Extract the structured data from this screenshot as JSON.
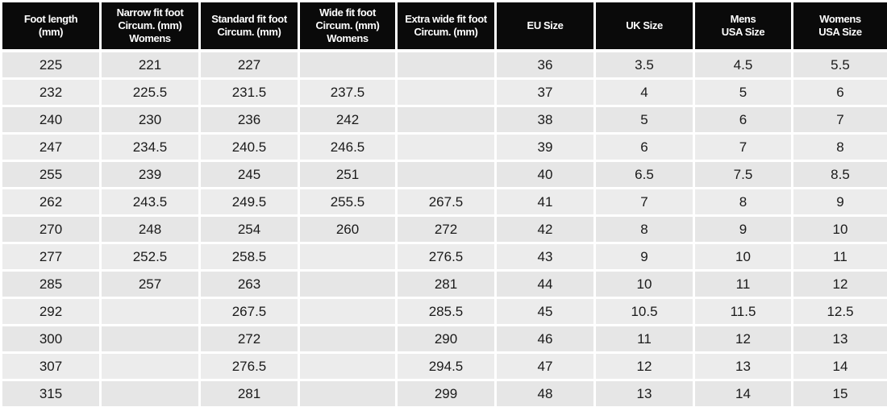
{
  "table": {
    "header": [
      "Foot length\n(mm)",
      "Narrow fit foot\nCircum. (mm)\nWomens",
      "Standard fit foot\nCircum. (mm)",
      "Wide fit foot\nCircum. (mm)\nWomens",
      "Extra wide fit foot\nCircum. (mm)",
      "EU Size",
      "UK Size",
      "Mens\nUSA Size",
      "Womens\nUSA Size"
    ],
    "rows": [
      [
        "225",
        "221",
        "227",
        null,
        null,
        "36",
        "3.5",
        "4.5",
        "5.5"
      ],
      [
        "232",
        "225.5",
        "231.5",
        "237.5",
        null,
        "37",
        "4",
        "5",
        "6"
      ],
      [
        "240",
        "230",
        "236",
        "242",
        null,
        "38",
        "5",
        "6",
        "7"
      ],
      [
        "247",
        "234.5",
        "240.5",
        "246.5",
        null,
        "39",
        "6",
        "7",
        "8"
      ],
      [
        "255",
        "239",
        "245",
        "251",
        null,
        "40",
        "6.5",
        "7.5",
        "8.5"
      ],
      [
        "262",
        "243.5",
        "249.5",
        "255.5",
        "267.5",
        "41",
        "7",
        "8",
        "9"
      ],
      [
        "270",
        "248",
        "254",
        "260",
        "272",
        "42",
        "8",
        "9",
        "10"
      ],
      [
        "277",
        "252.5",
        "258.5",
        null,
        "276.5",
        "43",
        "9",
        "10",
        "11"
      ],
      [
        "285",
        "257",
        "263",
        null,
        "281",
        "44",
        "10",
        "11",
        "12"
      ],
      [
        "292",
        null,
        "267.5",
        null,
        "285.5",
        "45",
        "10.5",
        "11.5",
        "12.5"
      ],
      [
        "300",
        null,
        "272",
        null,
        "290",
        "46",
        "11",
        "12",
        "13"
      ],
      [
        "307",
        null,
        "276.5",
        null,
        "294.5",
        "47",
        "12",
        "13",
        "14"
      ],
      [
        "315",
        null,
        "281",
        null,
        "299",
        "48",
        "13",
        "14",
        "15"
      ]
    ]
  }
}
